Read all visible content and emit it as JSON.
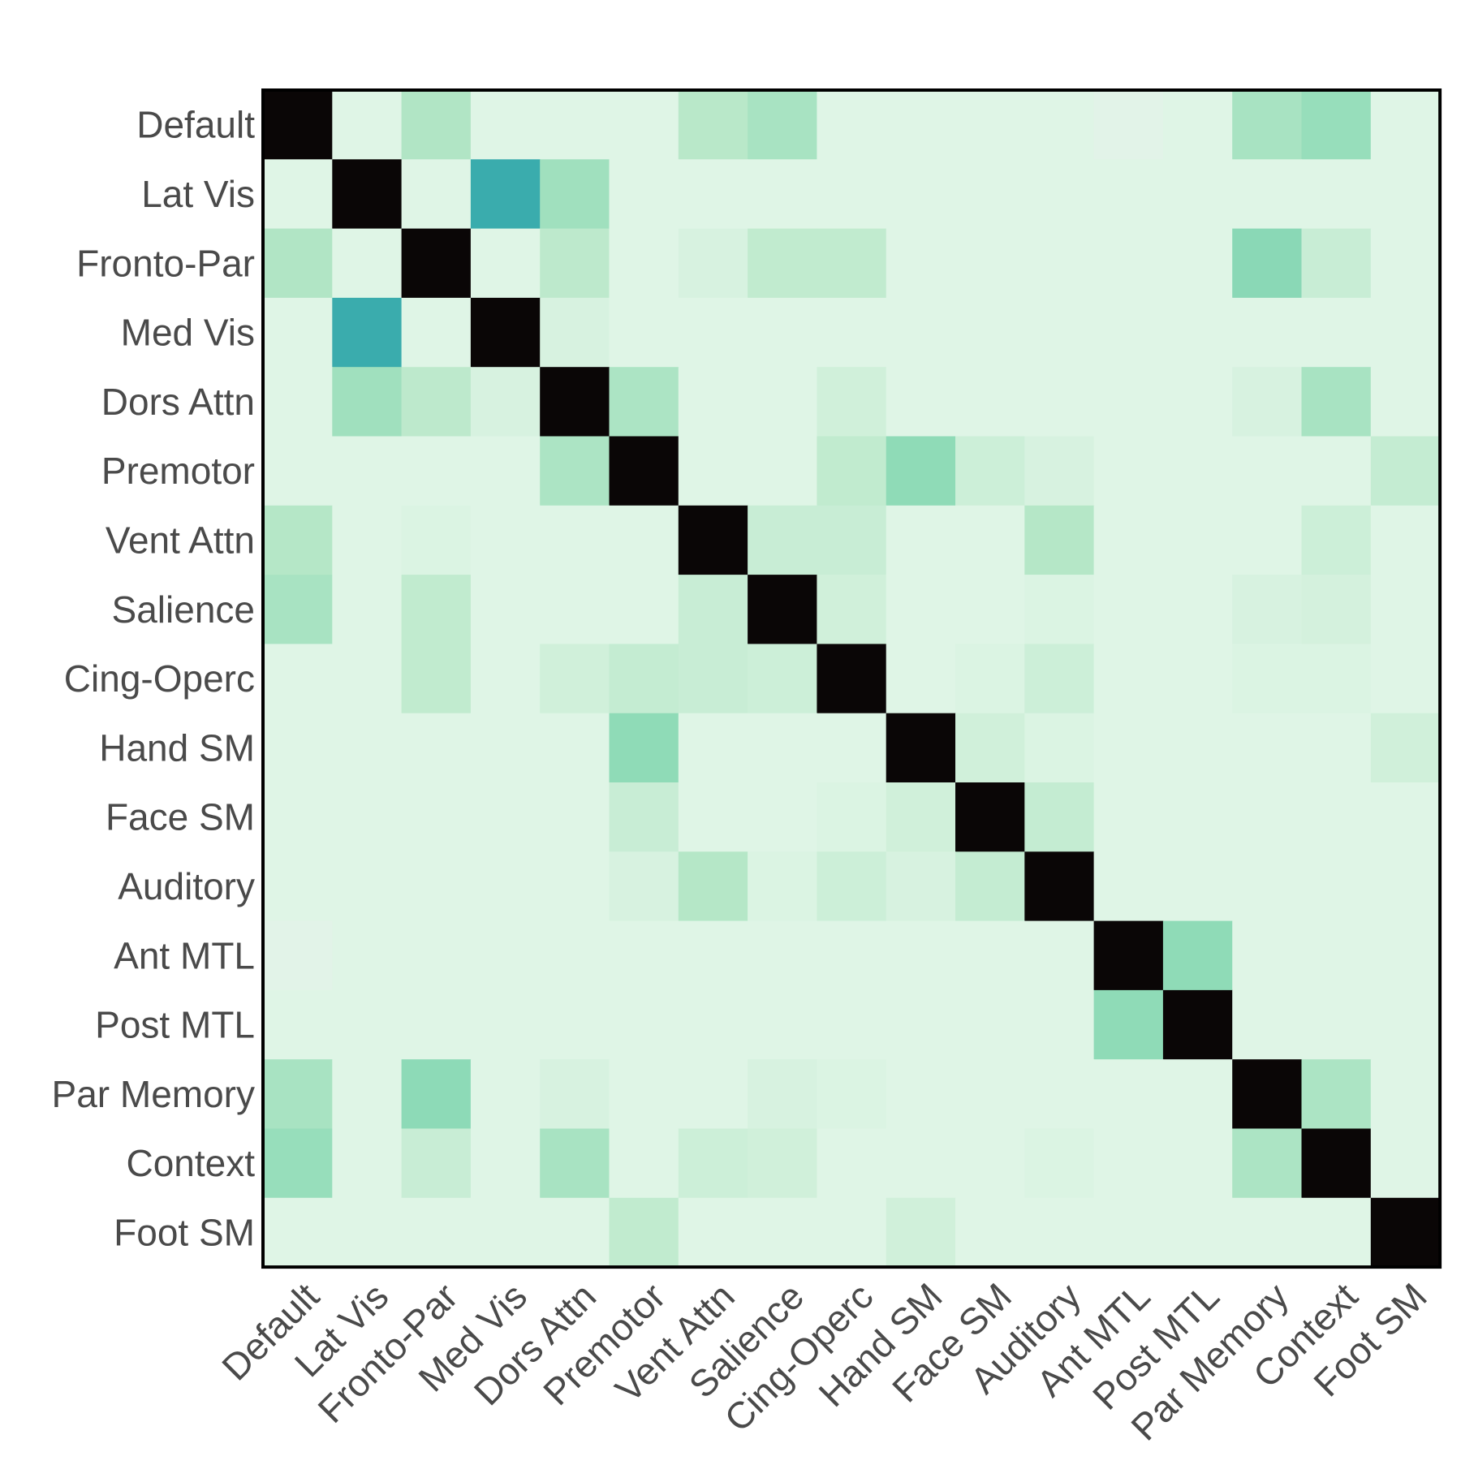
{
  "chart_data": {
    "type": "heatmap",
    "title": "",
    "xlabel": "",
    "ylabel": "",
    "categories": [
      "Default",
      "Lat Vis",
      "Fronto-Par",
      "Med Vis",
      "Dors Attn",
      "Premotor",
      "Vent Attn",
      "Salience",
      "Cing-Operc",
      "Hand SM",
      "Face SM",
      "Auditory",
      "Ant MTL",
      "Post MTL",
      "Par Memory",
      "Context",
      "Foot SM"
    ],
    "row_labels": [
      "Default",
      "Lat Vis",
      "Fronto-Par",
      "Med Vis",
      "Dors Attn",
      "Premotor",
      "Vent Attn",
      "Salience",
      "Cing-Operc",
      "Hand SM",
      "Face SM",
      "Auditory",
      "Ant MTL",
      "Post MTL",
      "Par Memory",
      "Context",
      "Foot SM"
    ],
    "col_labels": [
      "Default",
      "Lat Vis",
      "Fronto-Par",
      "Med Vis",
      "Dors Attn",
      "Premotor",
      "Vent Attn",
      "Salience",
      "Cing-Operc",
      "Hand SM",
      "Face SM",
      "Auditory",
      "Ant MTL",
      "Post MTL",
      "Par Memory",
      "Context",
      "Foot SM"
    ],
    "values": [
      [
        1.0,
        0.0,
        0.12,
        0.0,
        0.0,
        0.0,
        0.1,
        0.14,
        0.0,
        0.0,
        0.0,
        0.0,
        -0.02,
        0.0,
        0.14,
        0.18,
        0.0
      ],
      [
        0.0,
        1.0,
        0.0,
        0.55,
        0.16,
        0.0,
        0.0,
        0.0,
        0.0,
        0.0,
        0.0,
        0.0,
        0.0,
        0.0,
        0.0,
        0.0,
        0.0
      ],
      [
        0.12,
        0.0,
        1.0,
        0.0,
        0.09,
        0.0,
        0.02,
        0.08,
        0.08,
        0.0,
        0.0,
        0.0,
        0.0,
        0.0,
        0.22,
        0.06,
        0.0
      ],
      [
        0.0,
        0.55,
        0.0,
        1.0,
        0.02,
        0.0,
        0.0,
        0.0,
        0.0,
        0.0,
        0.0,
        0.0,
        0.0,
        0.0,
        0.0,
        0.0,
        0.0
      ],
      [
        0.0,
        0.16,
        0.09,
        0.02,
        1.0,
        0.13,
        0.0,
        0.0,
        0.04,
        0.0,
        0.0,
        0.0,
        0.0,
        0.0,
        0.02,
        0.14,
        0.0
      ],
      [
        0.0,
        0.0,
        0.0,
        0.0,
        0.13,
        1.0,
        0.0,
        0.0,
        0.08,
        0.2,
        0.05,
        0.02,
        0.0,
        0.0,
        0.0,
        0.0,
        0.07
      ],
      [
        0.11,
        0.0,
        0.01,
        0.0,
        0.0,
        0.0,
        1.0,
        0.06,
        0.06,
        0.0,
        0.0,
        0.11,
        0.0,
        0.0,
        0.0,
        0.05,
        0.0
      ],
      [
        0.14,
        0.0,
        0.08,
        0.0,
        0.0,
        0.0,
        0.06,
        1.0,
        0.04,
        0.0,
        0.0,
        0.01,
        0.0,
        0.0,
        0.02,
        0.03,
        0.0
      ],
      [
        0.0,
        0.0,
        0.08,
        0.0,
        0.04,
        0.07,
        0.06,
        0.05,
        1.0,
        0.0,
        0.01,
        0.05,
        0.0,
        0.0,
        0.01,
        0.01,
        0.0
      ],
      [
        0.0,
        0.0,
        0.0,
        0.0,
        0.0,
        0.2,
        0.0,
        0.0,
        0.0,
        1.0,
        0.04,
        0.01,
        0.0,
        0.0,
        0.0,
        0.0,
        0.04
      ],
      [
        0.0,
        0.0,
        0.0,
        0.0,
        0.0,
        0.06,
        0.0,
        0.0,
        0.01,
        0.04,
        1.0,
        0.07,
        0.0,
        0.0,
        0.0,
        0.0,
        0.0
      ],
      [
        0.0,
        0.0,
        0.0,
        0.0,
        0.0,
        0.02,
        0.11,
        0.01,
        0.05,
        0.02,
        0.07,
        1.0,
        0.0,
        0.0,
        0.0,
        0.0,
        0.0
      ],
      [
        -0.02,
        0.0,
        0.0,
        0.0,
        0.0,
        0.0,
        0.0,
        0.0,
        0.0,
        0.0,
        0.0,
        0.0,
        1.0,
        0.2,
        0.0,
        0.0,
        0.0
      ],
      [
        0.0,
        0.0,
        0.0,
        0.0,
        0.0,
        0.0,
        0.0,
        0.0,
        0.0,
        0.0,
        0.0,
        0.0,
        0.2,
        1.0,
        0.0,
        0.0,
        0.0
      ],
      [
        0.14,
        0.0,
        0.21,
        0.0,
        0.02,
        0.0,
        0.0,
        0.02,
        0.01,
        0.0,
        0.0,
        0.0,
        0.0,
        0.0,
        1.0,
        0.13,
        0.0
      ],
      [
        0.18,
        0.0,
        0.06,
        0.0,
        0.14,
        0.0,
        0.05,
        0.04,
        0.0,
        0.0,
        0.0,
        0.01,
        0.0,
        0.0,
        0.13,
        1.0,
        0.0
      ],
      [
        0.0,
        0.0,
        0.0,
        0.0,
        0.0,
        0.08,
        0.0,
        0.0,
        0.0,
        0.04,
        0.0,
        0.0,
        0.0,
        0.0,
        0.0,
        0.0,
        1.0
      ]
    ],
    "color_scale": {
      "stops": [
        {
          "value": -0.05,
          "color": "#e6f1ea"
        },
        {
          "value": 0.0,
          "color": "#dff5e6"
        },
        {
          "value": 0.1,
          "color": "#b9e8c9"
        },
        {
          "value": 0.2,
          "color": "#8fdbb7"
        },
        {
          "value": 0.55,
          "color": "#3aacad"
        },
        {
          "value": 1.0,
          "color": "#0a0606"
        }
      ]
    },
    "grid": false,
    "legend": "none",
    "frame_color": "#000000",
    "label_color": "#4a4a4a"
  }
}
